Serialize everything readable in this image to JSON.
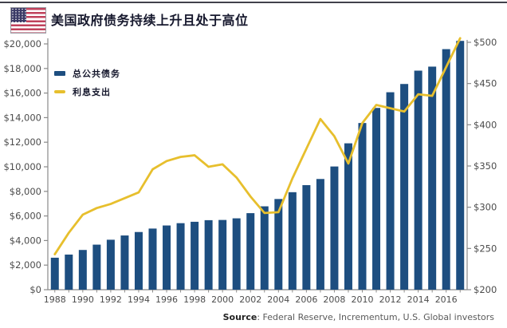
{
  "header": {
    "title": "美国政府债务持续上升且处于高位"
  },
  "legend": {
    "debt_label": "总公共债务",
    "interest_label": "利息支出"
  },
  "source": {
    "label": "Source",
    "text": ": Federal Reserve, Incrementum, U.S. Global investors"
  },
  "colors": {
    "bar": "#1d4e80",
    "line": "#e7bf2d",
    "axis_line": "#8a8a8a",
    "tick_text": "#4c4c4c",
    "title_text": "#16182d",
    "flag_red": "#c0425c",
    "flag_blue": "#3a3a66"
  },
  "chart_data": {
    "type": "combo",
    "categories": [
      1988,
      1989,
      1990,
      1991,
      1992,
      1993,
      1994,
      1995,
      1996,
      1997,
      1998,
      1999,
      2000,
      2001,
      2002,
      2003,
      2004,
      2005,
      2006,
      2007,
      2008,
      2009,
      2010,
      2011,
      2012,
      2013,
      2014,
      2015,
      2016,
      2017
    ],
    "series": [
      {
        "name": "总公共债务",
        "type": "bar",
        "axis": "left",
        "color": "#1d4e80",
        "values": [
          2602,
          2857,
          3233,
          3665,
          4065,
          4411,
          4693,
          4974,
          5225,
          5413,
          5526,
          5656,
          5674,
          5807,
          6228,
          6783,
          7379,
          7933,
          8507,
          9008,
          10025,
          11910,
          13562,
          14790,
          16066,
          16738,
          17824,
          18151,
          19573,
          20245
        ]
      },
      {
        "name": "利息支出",
        "type": "line",
        "axis": "right",
        "color": "#e7bf2d",
        "values": [
          243,
          269,
          291,
          299,
          304,
          311,
          318,
          346,
          356,
          361,
          363,
          349,
          352,
          336,
          313,
          293,
          294,
          335,
          371,
          407,
          386,
          353,
          402,
          424,
          420,
          416,
          437,
          435,
          470,
          505
        ]
      }
    ],
    "left_axis": {
      "min": 0,
      "max": 20000,
      "step": 2000,
      "tick_labels": [
        "$0",
        "$2,000",
        "$4,000",
        "$6,000",
        "$8,000",
        "$10,000",
        "$12,000",
        "$14,000",
        "$16,000",
        "$18,000",
        "$20,000"
      ]
    },
    "right_axis": {
      "min": 200,
      "max": 500,
      "step": 50,
      "tick_labels": [
        "$200",
        "$250",
        "$300",
        "$350",
        "$400",
        "$450",
        "$500"
      ]
    },
    "x_tick_labels": [
      "1988",
      "1990",
      "1992",
      "1994",
      "1996",
      "1998",
      "2000",
      "2002",
      "2004",
      "2006",
      "2008",
      "2010",
      "2012",
      "2014",
      "2016"
    ],
    "gridlines": false,
    "legend_position": "top-left"
  }
}
